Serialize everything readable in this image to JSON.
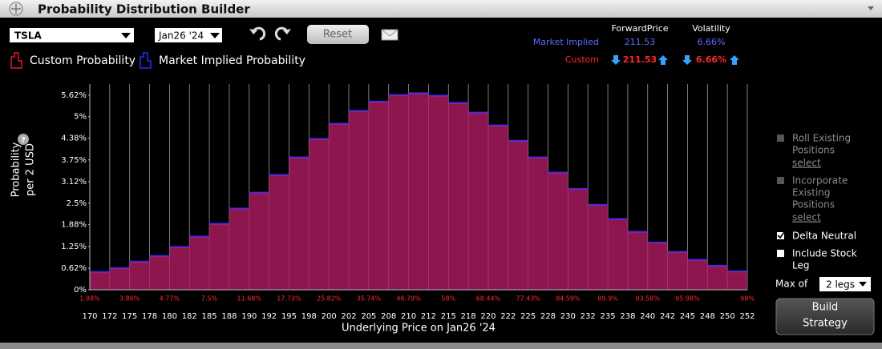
{
  "header": {
    "title": "Probability Distribution Builder"
  },
  "toolbar": {
    "symbol": "TSLA",
    "expiry": "Jan26 '24",
    "reset": "Reset"
  },
  "pricing": {
    "headers": [
      "ForwardPrice",
      "Volatility"
    ],
    "rows": [
      {
        "label": "Market Implied",
        "forward": "211.53",
        "volatility": "6.66%"
      },
      {
        "label": "Custom",
        "forward": "211.53",
        "volatility": "6.66%"
      }
    ]
  },
  "chart_data": {
    "type": "histogram",
    "ylabel": [
      "Probability",
      "per 2 USD"
    ],
    "xlabel": "Underlying Price on Jan26 '24",
    "bins": [
      170,
      {
        "value": 172.5,
        "label": "172"
      },
      175,
      {
        "value": 177.5,
        "label": "178"
      },
      180,
      {
        "value": 182.5,
        "label": "182"
      },
      185,
      {
        "value": 187.5,
        "label": "188"
      },
      190,
      {
        "value": 192.5,
        "label": "192"
      },
      195,
      {
        "value": 197.5,
        "label": "198"
      },
      200,
      {
        "value": 202.5,
        "label": "202"
      },
      205,
      {
        "value": 207.5,
        "label": "208"
      },
      210,
      {
        "value": 212.5,
        "label": "212"
      },
      215,
      {
        "value": 217.5,
        "label": "218"
      },
      220,
      {
        "value": 222.5,
        "label": "222"
      },
      225,
      {
        "value": 227.5,
        "label": "228"
      },
      230,
      {
        "value": 232.5,
        "label": "232"
      },
      235,
      {
        "value": 237.5,
        "label": "238"
      },
      240,
      {
        "value": 242.5,
        "label": "242"
      },
      245,
      {
        "value": 247.5,
        "label": "248"
      },
      250,
      {
        "value": 252.5,
        "label": "252"
      }
    ],
    "series": [
      {
        "name": "Market Implied Probability",
        "color": "#2b2bff",
        "values": [
          0.51,
          0.62,
          0.81,
          0.97,
          1.23,
          1.53,
          1.9,
          2.34,
          2.8,
          3.31,
          3.82,
          4.35,
          4.79,
          5.16,
          5.43,
          5.62,
          5.67,
          5.6,
          5.39,
          5.11,
          4.74,
          4.3,
          3.82,
          3.38,
          2.91,
          2.45,
          2.04,
          1.67,
          1.36,
          1.09,
          0.86,
          0.69,
          0.53
        ]
      },
      {
        "name": "Custom Probability",
        "color": "#e0182d",
        "values": [
          0.51,
          0.62,
          0.81,
          0.97,
          1.23,
          1.53,
          1.9,
          2.34,
          2.8,
          3.31,
          3.82,
          4.35,
          4.79,
          5.16,
          5.43,
          5.62,
          5.67,
          5.6,
          5.39,
          5.11,
          4.74,
          4.3,
          3.82,
          3.38,
          2.91,
          2.45,
          2.04,
          1.67,
          1.36,
          1.09,
          0.86,
          0.69,
          0.53
        ]
      }
    ],
    "cumulative": {
      "x": [
        170,
        175,
        180,
        185,
        190,
        195,
        200,
        205,
        210,
        215,
        220,
        225,
        230,
        235,
        240,
        245,
        252.5
      ],
      "values": [
        1.98,
        3.86,
        4.77,
        7.5,
        11.68,
        17.73,
        25.82,
        35.74,
        46.79,
        58,
        68.44,
        77.43,
        84.59,
        89.9,
        93.58,
        95.98,
        98
      ],
      "value_labels": [
        "1.98%",
        "3.86%",
        "4.77%",
        "7.5%",
        "11.68%",
        "17.73%",
        "25.82%",
        "35.74%",
        "46.79%",
        "58%",
        "68.44%",
        "77.43%",
        "84.59%",
        "89.9%",
        "93.58%",
        "95.98%",
        "98%"
      ],
      "color": "#ff2a2a"
    },
    "xlim": [
      170,
      252.5
    ],
    "ylim": [
      0,
      5.94
    ],
    "yticks": [
      {
        "value": 0,
        "label": "0%"
      },
      {
        "value": 0.62,
        "label": "0.62%"
      },
      {
        "value": 1.25,
        "label": "1.25%"
      },
      {
        "value": 1.88,
        "label": "1.88%"
      },
      {
        "value": 2.5,
        "label": "2.5%"
      },
      {
        "value": 3.12,
        "label": "3.12%"
      },
      {
        "value": 3.75,
        "label": "3.75%"
      },
      {
        "value": 4.38,
        "label": "4.38%"
      },
      {
        "value": 5,
        "label": "5%"
      },
      {
        "value": 5.62,
        "label": "5.62%"
      }
    ],
    "grid": true
  },
  "side_panel": {
    "roll": {
      "lines": [
        "Roll Existing",
        "Positions"
      ],
      "link": "select"
    },
    "incorporate": {
      "lines": [
        "Incorporate",
        "Existing",
        "Positions"
      ],
      "link": "select"
    },
    "delta_neutral": "Delta Neutral",
    "include_stock": {
      "lines": [
        "Include Stock",
        "Leg"
      ]
    },
    "max_of": "Max of",
    "legs": "2 legs",
    "build": [
      "Build",
      "Strategy"
    ]
  }
}
